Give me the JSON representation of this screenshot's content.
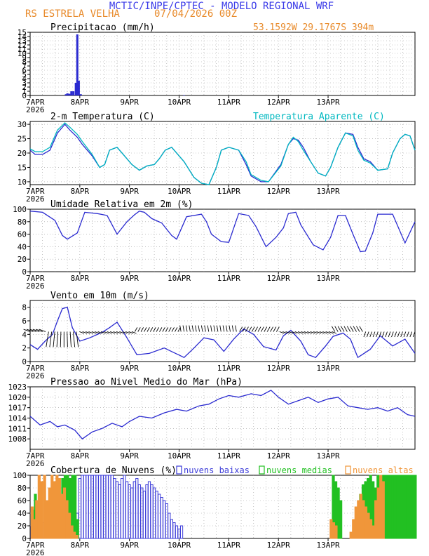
{
  "header": {
    "line1": "MCTIC/INPE/CPTEC - MODELO REGIONAL WRF",
    "location": "RS ESTRELA VELHA",
    "run": "07/04/2026 00Z",
    "coords": "53.1592W 29.1767S 394m"
  },
  "colors": {
    "title": "#3a3ae8",
    "subtitle": "#e88a2a",
    "line": "#2a2ad0",
    "apparent": "#00b8c0",
    "low": "#3b3bd8",
    "mid": "#22c022",
    "high": "#f0963a",
    "grid": "#9a9a9a"
  },
  "axis_labels": {
    "ticks": [
      "7APR",
      "8APR",
      "9APR",
      "10APR",
      "11APR",
      "12APR",
      "13APR"
    ],
    "year": "2026"
  },
  "chart_data": [
    {
      "id": "precip",
      "type": "bar",
      "title": "Precipitacao (mm/h)",
      "ylim": [
        0,
        15
      ],
      "yticks": [
        0,
        1,
        2,
        3,
        4,
        5,
        6,
        7,
        8,
        9,
        10,
        11,
        12,
        13,
        14,
        15
      ],
      "x_days": [
        0.72,
        0.75,
        0.79,
        0.83,
        0.87,
        0.92,
        0.95,
        0.98,
        1.02,
        3.1
      ],
      "values": [
        0.3,
        0.5,
        0.4,
        1.0,
        1.0,
        3.0,
        14.5,
        3.5,
        0.3,
        0.1
      ]
    },
    {
      "id": "temp",
      "type": "line",
      "title": "2-m Temperatura (C)",
      "ylim": [
        9,
        31
      ],
      "yticks": [
        10,
        15,
        20,
        25,
        30
      ],
      "legend": "Temperatura Aparente (C)",
      "series": [
        {
          "role": "temperature",
          "x": [
            0,
            0.1,
            0.25,
            0.4,
            0.55,
            0.7,
            0.8,
            0.95,
            1.05,
            1.25,
            1.4,
            1.5,
            1.6,
            1.75,
            1.9,
            2.05,
            2.2,
            2.35,
            2.5,
            2.6,
            2.72,
            2.85,
            3.1,
            3.3,
            3.45,
            3.6,
            3.75,
            3.85,
            4.0,
            4.2,
            4.35,
            4.45,
            4.55,
            4.65,
            4.8,
            5.05,
            5.2,
            5.3,
            5.4,
            5.5,
            5.65,
            5.8,
            5.95,
            6.05,
            6.2,
            6.35,
            6.5,
            6.6,
            6.72,
            6.85,
            7.0,
            7.2,
            7.3,
            7.45,
            7.55,
            7.65,
            7.75
          ],
          "y": [
            21,
            19.5,
            19.5,
            21,
            27,
            30,
            28,
            25.5,
            23,
            19,
            15,
            16,
            21,
            22,
            19,
            16,
            14,
            15.5,
            16,
            18,
            21,
            22,
            17,
            11.5,
            9.5,
            9,
            15,
            21,
            22,
            21,
            16,
            12,
            11,
            10,
            10,
            16,
            23,
            25,
            24.5,
            22,
            17,
            13,
            12,
            15,
            22,
            27,
            26.5,
            22,
            18,
            17,
            14,
            14.5,
            20,
            25,
            26.5,
            26,
            21
          ]
        },
        {
          "role": "apparent",
          "x": [
            0,
            0.1,
            0.25,
            0.4,
            0.55,
            0.7,
            0.8,
            0.95,
            1.05,
            1.25,
            1.4,
            1.5,
            1.6,
            1.75,
            1.9,
            2.05,
            2.2,
            2.35,
            2.5,
            2.6,
            2.72,
            2.85,
            3.1,
            3.3,
            3.45,
            3.6,
            3.75,
            3.85,
            4.0,
            4.2,
            4.35,
            4.45,
            4.55,
            4.65,
            4.8,
            5.05,
            5.2,
            5.3,
            5.4,
            5.5,
            5.65,
            5.8,
            5.95,
            6.05,
            6.2,
            6.35,
            6.5,
            6.6,
            6.72,
            6.85,
            7.0,
            7.2,
            7.3,
            7.45,
            7.55,
            7.65,
            7.75
          ],
          "y": [
            21.5,
            20.5,
            20.5,
            22,
            28,
            30.5,
            29,
            26.5,
            24,
            19.5,
            15,
            16,
            21,
            22,
            19,
            16,
            14,
            15.5,
            16,
            18,
            21,
            22,
            17,
            11.5,
            9.5,
            9,
            15,
            21,
            22,
            21,
            17,
            12.5,
            11.5,
            10.5,
            10,
            15.5,
            23,
            25.5,
            24,
            21,
            17,
            13,
            12,
            15,
            22,
            27,
            26,
            21,
            17.5,
            16.5,
            14,
            14.5,
            20,
            25,
            26.5,
            26,
            21
          ]
        }
      ]
    },
    {
      "id": "rh",
      "type": "line",
      "title": "Umidade Relativa em 2m (%)",
      "ylim": [
        0,
        100
      ],
      "yticks": [
        0,
        20,
        40,
        60,
        80,
        100
      ],
      "series": [
        {
          "x": [
            0,
            0.25,
            0.5,
            0.65,
            0.75,
            0.95,
            1.1,
            1.35,
            1.55,
            1.75,
            1.95,
            2.1,
            2.2,
            2.3,
            2.45,
            2.65,
            2.85,
            2.95,
            3.05,
            3.15,
            3.45,
            3.55,
            3.65,
            3.85,
            4.0,
            4.2,
            4.4,
            4.55,
            4.75,
            4.95,
            5.1,
            5.2,
            5.35,
            5.45,
            5.7,
            5.9,
            6.05,
            6.2,
            6.35,
            6.5,
            6.65,
            6.75,
            6.9,
            7.0,
            7.3,
            7.55,
            7.75
          ],
          "y": [
            97,
            95,
            82,
            58,
            52,
            62,
            95,
            93,
            90,
            60,
            80,
            91,
            97,
            95,
            85,
            78,
            58,
            52,
            70,
            88,
            92,
            80,
            60,
            48,
            47,
            93,
            90,
            72,
            40,
            55,
            70,
            93,
            95,
            75,
            43,
            35,
            55,
            90,
            90,
            60,
            32,
            33,
            62,
            92,
            92,
            46,
            80
          ]
        }
      ]
    },
    {
      "id": "wind",
      "type": "line",
      "title": "Vento em 10m (m/s)",
      "ylim": [
        0,
        9
      ],
      "yticks": [
        0,
        2,
        4,
        6,
        8
      ],
      "series": [
        {
          "x": [
            0,
            0.15,
            0.3,
            0.45,
            0.55,
            0.65,
            0.75,
            0.85,
            1.0,
            1.2,
            1.45,
            1.6,
            1.75,
            1.95,
            2.15,
            2.4,
            2.7,
            2.9,
            3.1,
            3.3,
            3.5,
            3.7,
            3.9,
            4.1,
            4.3,
            4.5,
            4.7,
            4.95,
            5.1,
            5.25,
            5.45,
            5.6,
            5.75,
            5.95,
            6.1,
            6.3,
            6.45,
            6.6,
            6.85,
            7.05,
            7.3,
            7.55,
            7.75
          ],
          "y": [
            2.5,
            1.8,
            3.0,
            4.0,
            6.0,
            7.8,
            8.0,
            5.0,
            3.0,
            3.5,
            4.3,
            5.0,
            5.8,
            3.5,
            1.0,
            1.2,
            2.0,
            1.3,
            0.6,
            2.0,
            3.5,
            3.2,
            1.5,
            3.3,
            4.8,
            4.0,
            2.2,
            1.7,
            3.8,
            4.6,
            3.0,
            1.0,
            0.6,
            2.3,
            3.7,
            4.2,
            3.3,
            0.6,
            1.8,
            3.8,
            2.3,
            3.3,
            1.2
          ]
        }
      ]
    },
    {
      "id": "pressure",
      "type": "line",
      "title": "Pressao ao Nivel Medio do Mar (hPa)",
      "ylim": [
        1005,
        1023
      ],
      "yticks": [
        1008,
        1011,
        1014,
        1017,
        1020,
        1023
      ],
      "series": [
        {
          "x": [
            0,
            0.2,
            0.4,
            0.55,
            0.7,
            0.9,
            1.05,
            1.25,
            1.45,
            1.65,
            1.85,
            2.0,
            2.2,
            2.45,
            2.7,
            2.95,
            3.15,
            3.4,
            3.6,
            3.8,
            4.0,
            4.2,
            4.45,
            4.65,
            4.85,
            5.0,
            5.2,
            5.4,
            5.6,
            5.8,
            6.0,
            6.2,
            6.4,
            6.6,
            6.8,
            7.0,
            7.2,
            7.4,
            7.6,
            7.75
          ],
          "y": [
            1014.5,
            1012.0,
            1013.0,
            1011.5,
            1012.0,
            1010.5,
            1008.0,
            1010.0,
            1011.0,
            1012.5,
            1011.5,
            1013.0,
            1014.5,
            1014.0,
            1015.5,
            1016.5,
            1016.0,
            1017.5,
            1018.0,
            1019.5,
            1020.5,
            1020.0,
            1021.0,
            1020.5,
            1022.0,
            1020.0,
            1018.0,
            1019.0,
            1020.0,
            1018.5,
            1019.5,
            1020.0,
            1017.5,
            1017.0,
            1016.5,
            1017.0,
            1016.0,
            1017.0,
            1015.0,
            1014.5
          ]
        }
      ]
    },
    {
      "id": "clouds",
      "type": "bar",
      "title": "Cobertura de Nuvens (%)",
      "ylim": [
        0,
        100
      ],
      "yticks": [
        0,
        20,
        40,
        60,
        80,
        100
      ],
      "legend": [
        "nuvens baixas",
        "nuvens medias",
        "nuvens altas"
      ],
      "series": [
        {
          "name": "nuvens baixas",
          "x": [
            0.04,
            0.08,
            0.12,
            0.16,
            0.2,
            0.25,
            0.3,
            0.35,
            0.4,
            0.45,
            0.5,
            0.55,
            0.6,
            0.65,
            0.7,
            0.75,
            0.8,
            0.85,
            0.9,
            0.95,
            1.0,
            1.05,
            1.1,
            1.15,
            1.2,
            1.25,
            1.3,
            1.35,
            1.4,
            1.45,
            1.5,
            1.55,
            1.6,
            1.65,
            1.7,
            1.75,
            1.8,
            1.85,
            1.9,
            1.95,
            2.0,
            2.05,
            2.1,
            2.15,
            2.2,
            2.25,
            2.3,
            2.35,
            2.4,
            2.45,
            2.5,
            2.55,
            2.6,
            2.65,
            2.7,
            2.75,
            2.8,
            2.85,
            2.9,
            2.95,
            3.0,
            3.05,
            6.9,
            6.95
          ],
          "y": [
            20,
            35,
            15,
            10,
            20,
            25,
            15,
            10,
            12,
            20,
            15,
            10,
            20,
            30,
            15,
            20,
            25,
            30,
            35,
            40,
            95,
            100,
            100,
            100,
            100,
            100,
            100,
            100,
            100,
            100,
            100,
            100,
            100,
            100,
            95,
            90,
            85,
            95,
            100,
            90,
            85,
            80,
            90,
            95,
            85,
            80,
            75,
            85,
            90,
            85,
            80,
            75,
            70,
            65,
            60,
            55,
            40,
            30,
            25,
            20,
            15,
            20,
            5,
            10
          ]
        },
        {
          "name": "nuvens medias",
          "x": [
            0.05,
            0.1,
            0.35,
            0.45,
            0.5,
            0.6,
            0.65,
            0.7,
            0.75,
            0.8,
            0.85,
            0.9,
            0.95,
            6.1,
            6.15,
            6.2,
            6.25,
            6.6,
            6.65,
            6.7,
            6.75,
            6.8,
            6.85,
            6.9,
            6.95,
            7.0,
            7.05,
            7.1,
            7.15,
            7.2,
            7.25,
            7.3,
            7.35,
            7.4,
            7.45,
            7.5,
            7.55,
            7.6,
            7.65,
            7.7,
            7.75
          ],
          "y": [
            45,
            70,
            30,
            50,
            35,
            25,
            95,
            100,
            100,
            95,
            100,
            100,
            30,
            100,
            90,
            80,
            60,
            40,
            70,
            85,
            90,
            95,
            100,
            90,
            80,
            100,
            100,
            100,
            100,
            100,
            100,
            100,
            100,
            100,
            100,
            100,
            100,
            100,
            100,
            100,
            100
          ]
        },
        {
          "name": "nuvens altas",
          "x": [
            0.03,
            0.07,
            0.12,
            0.17,
            0.22,
            0.28,
            0.33,
            0.38,
            0.43,
            0.48,
            0.53,
            0.58,
            0.63,
            0.68,
            0.73,
            0.78,
            0.83,
            0.88,
            0.93,
            6.05,
            6.1,
            6.15,
            6.45,
            6.5,
            6.55,
            6.6,
            6.65,
            6.7,
            6.75,
            6.8,
            6.85,
            6.9,
            6.95,
            7.0,
            7.05,
            7.1
          ],
          "y": [
            50,
            30,
            60,
            100,
            90,
            100,
            60,
            80,
            100,
            90,
            100,
            95,
            70,
            80,
            60,
            40,
            20,
            10,
            5,
            30,
            25,
            20,
            10,
            30,
            50,
            60,
            70,
            60,
            50,
            40,
            30,
            20,
            60,
            80,
            100,
            90
          ]
        }
      ]
    }
  ]
}
